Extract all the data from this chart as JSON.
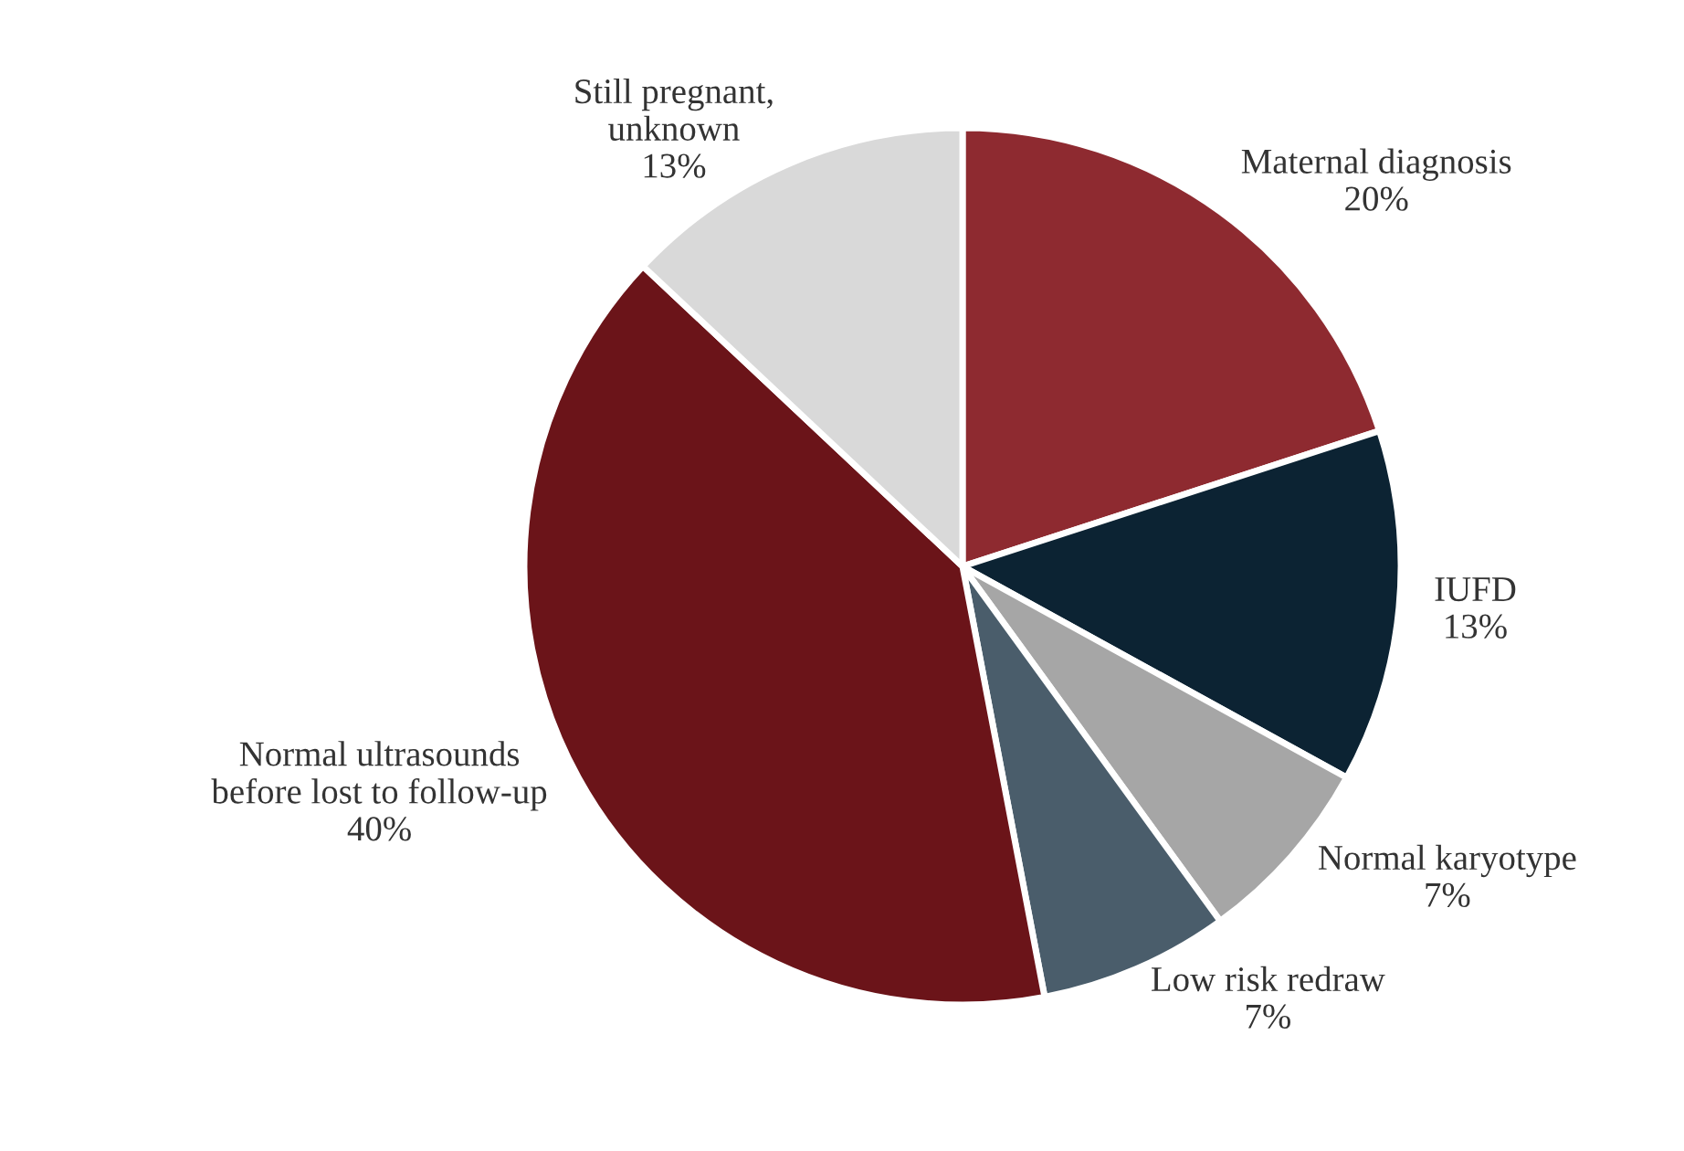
{
  "chart_data": {
    "type": "pie",
    "categories": [
      "Maternal diagnosis",
      "IUFD",
      "Normal karyotype",
      "Low risk redraw",
      "Normal ultrasounds\nbefore lost to follow-up",
      "Still pregnant,\nunknown"
    ],
    "values": [
      20,
      13,
      7,
      7,
      40,
      13
    ],
    "value_labels": [
      "20%",
      "13%",
      "7%",
      "7%",
      "40%",
      "13%"
    ],
    "colors": [
      "#8e2a30",
      "#0c2333",
      "#a6a6a6",
      "#4a5d6b",
      "#6b1419",
      "#d9d9d9"
    ],
    "legend": false
  }
}
